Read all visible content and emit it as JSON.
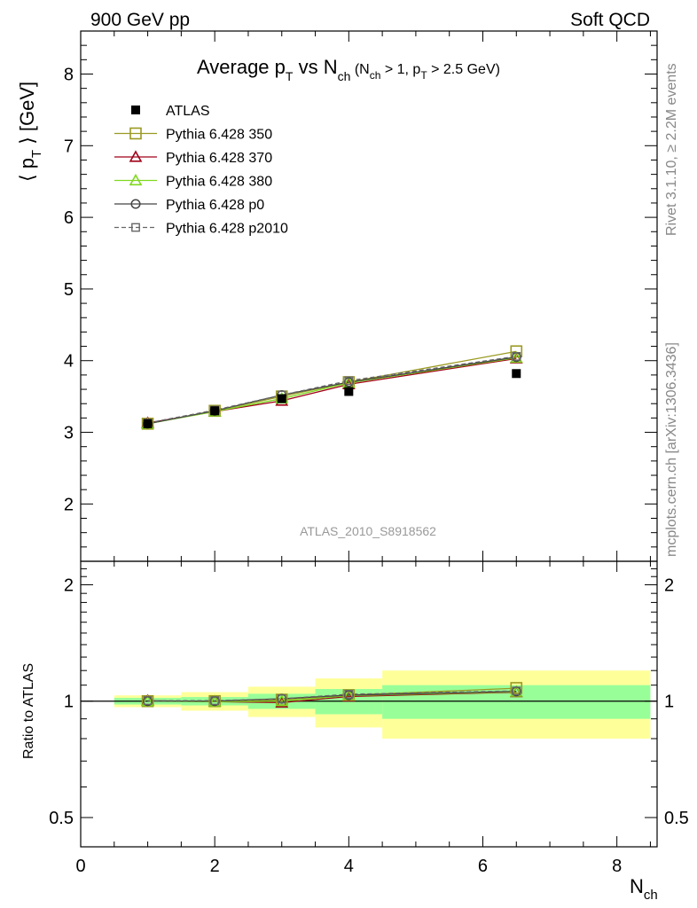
{
  "header": {
    "left": "900 GeV pp",
    "right": "Soft QCD",
    "analysis_id": "ATLAS_2010_S8918562",
    "side_text_top": "Rivet 3.1.10, ≥ 2.2M events",
    "side_text_bottom": "mcplots.cern.ch [arXiv:1306.3436]"
  },
  "chart_data": {
    "type": "line",
    "title": {
      "main": "Average p",
      "sub_T": "T",
      "mid": " vs N",
      "sub_ch": "ch",
      "cond": " (N",
      "cond_sub_ch": "ch",
      "cond2": " > 1, p",
      "cond_sub_T": "T",
      "cond3": " > 2.5 GeV)"
    },
    "ylabel": {
      "lhs": "⟨ p",
      "sub": "T",
      "rhs": " ⟩ [GeV]"
    },
    "xlabel": {
      "main": "N",
      "sub": "ch"
    },
    "ratio_ylabel": "Ratio to ATLAS",
    "xlim": [
      0,
      8.6
    ],
    "ylim": [
      1.2,
      8.6
    ],
    "ratio_ylim": [
      0.42,
      2.3
    ],
    "ratio_log_scale": true,
    "x_ticks": [
      0,
      2,
      4,
      6,
      8
    ],
    "x_tick_labels": [
      "0",
      "2",
      "4",
      "6",
      "8"
    ],
    "y_ticks": [
      2,
      3,
      4,
      5,
      6,
      7,
      8
    ],
    "y_tick_labels": [
      "2",
      "3",
      "4",
      "5",
      "6",
      "7",
      "8"
    ],
    "ratio_ticks": [
      0.5,
      1,
      2
    ],
    "ratio_tick_labels": [
      "0.5",
      "1",
      "2"
    ],
    "legend_position": "top-left",
    "data": {
      "name": "ATLAS",
      "x": [
        1,
        2,
        3,
        4,
        6.5
      ],
      "y": [
        3.12,
        3.3,
        3.47,
        3.57,
        3.82
      ],
      "color": "#000000"
    },
    "series": [
      {
        "name": "Pythia 6.428 350",
        "color": "#9a9a22",
        "marker": "square-open",
        "dash": "",
        "y": [
          3.12,
          3.3,
          3.5,
          3.7,
          4.13
        ]
      },
      {
        "name": "Pythia 6.428 370",
        "color": "#a00018",
        "marker": "triangle-open",
        "dash": "",
        "y": [
          3.13,
          3.29,
          3.44,
          3.67,
          4.03
        ]
      },
      {
        "name": "Pythia 6.428 380",
        "color": "#80d820",
        "marker": "triangle-open",
        "dash": "",
        "y": [
          3.12,
          3.29,
          3.47,
          3.69,
          4.04
        ]
      },
      {
        "name": "Pythia 6.428 p0",
        "color": "#444444",
        "marker": "circle-open",
        "dash": "",
        "y": [
          3.12,
          3.3,
          3.52,
          3.7,
          4.05
        ]
      },
      {
        "name": "Pythia 6.428 p2010",
        "color": "#666666",
        "marker": "square-open-small",
        "dash": "5,3",
        "y": [
          3.13,
          3.31,
          3.52,
          3.72,
          4.06
        ]
      }
    ],
    "ratio_bands": [
      {
        "x": [
          0.5,
          1.5
        ],
        "stat": [
          0.98,
          1.02
        ],
        "total": [
          0.965,
          1.035
        ]
      },
      {
        "x": [
          1.5,
          2.5
        ],
        "stat": [
          0.975,
          1.025
        ],
        "total": [
          0.945,
          1.055
        ]
      },
      {
        "x": [
          2.5,
          3.5
        ],
        "stat": [
          0.955,
          1.045
        ],
        "total": [
          0.91,
          1.09
        ]
      },
      {
        "x": [
          3.5,
          4.5
        ],
        "stat": [
          0.925,
          1.075
        ],
        "total": [
          0.855,
          1.145
        ]
      },
      {
        "x": [
          4.5,
          8.5
        ],
        "stat": [
          0.9,
          1.1
        ],
        "total": [
          0.8,
          1.2
        ]
      }
    ],
    "band_colors": {
      "stat": "#98ff98",
      "total": "#ffff9a"
    }
  }
}
